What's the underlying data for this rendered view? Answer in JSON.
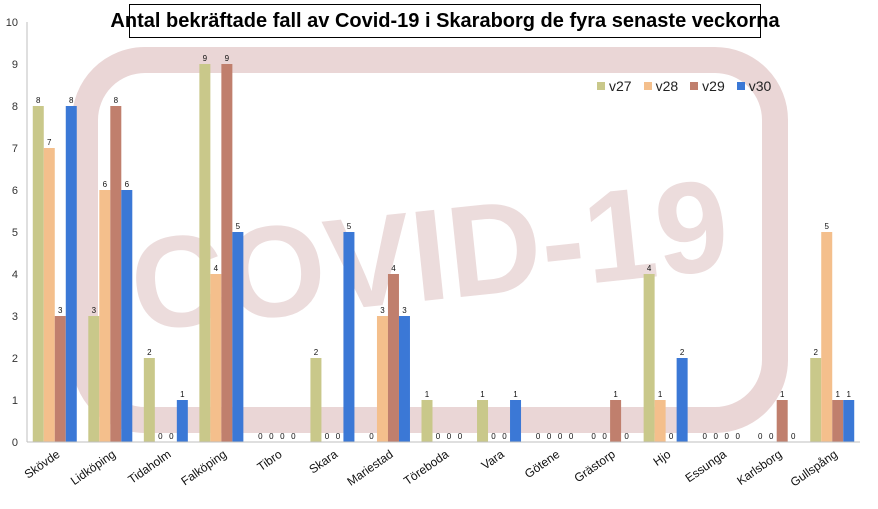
{
  "chart_data": {
    "type": "bar",
    "title": "Antal bekräftade fall av Covid-19 i Skaraborg de fyra senaste veckorna",
    "xlabel": "",
    "ylabel": "",
    "ylim": [
      0,
      10
    ],
    "yticks": [
      0,
      1,
      2,
      3,
      4,
      5,
      6,
      7,
      8,
      9,
      10
    ],
    "grid": false,
    "legend_position": "top-right",
    "background_watermark": "COVID-19",
    "categories": [
      "Skövde",
      "Lidköping",
      "Tidaholm",
      "Falköping",
      "Tibro",
      "Skara",
      "Mariestad",
      "Töreboda",
      "Vara",
      "Götene",
      "Grästorp",
      "Hjo",
      "Essunga",
      "Karlsborg",
      "Gullspång"
    ],
    "series": [
      {
        "name": "v27",
        "color": "#c9c88a",
        "values": [
          8,
          3,
          2,
          9,
          0,
          2,
          0,
          1,
          1,
          0,
          0,
          4,
          0,
          0,
          2
        ]
      },
      {
        "name": "v28",
        "color": "#f4bf8c",
        "values": [
          7,
          6,
          0,
          4,
          0,
          0,
          3,
          0,
          0,
          0,
          0,
          1,
          0,
          0,
          5
        ]
      },
      {
        "name": "v29",
        "color": "#c07f6d",
        "values": [
          3,
          8,
          0,
          9,
          0,
          0,
          4,
          0,
          0,
          0,
          1,
          0,
          0,
          1,
          1
        ]
      },
      {
        "name": "v30",
        "color": "#3b78d6",
        "values": [
          8,
          6,
          1,
          5,
          0,
          5,
          3,
          0,
          1,
          0,
          0,
          2,
          0,
          0,
          1
        ]
      }
    ]
  }
}
